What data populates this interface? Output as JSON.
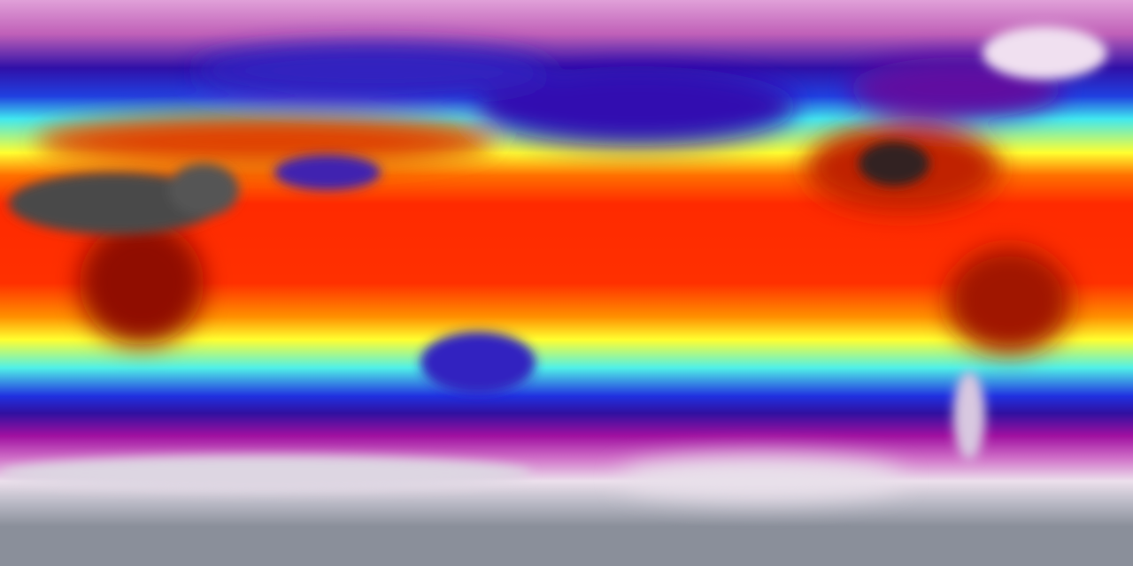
{
  "map": {
    "projection": "equirectangular",
    "colormap": [
      "#8a8f9a",
      "#e8d8e8",
      "#a010a0",
      "#2010c0",
      "#40e8f0",
      "#ffff20",
      "#ff3000",
      "#500000",
      "#505050"
    ],
    "land_colors": {
      "desert": "#555555",
      "greenland": "#f0e0f0",
      "australia": "#3020c0"
    }
  }
}
